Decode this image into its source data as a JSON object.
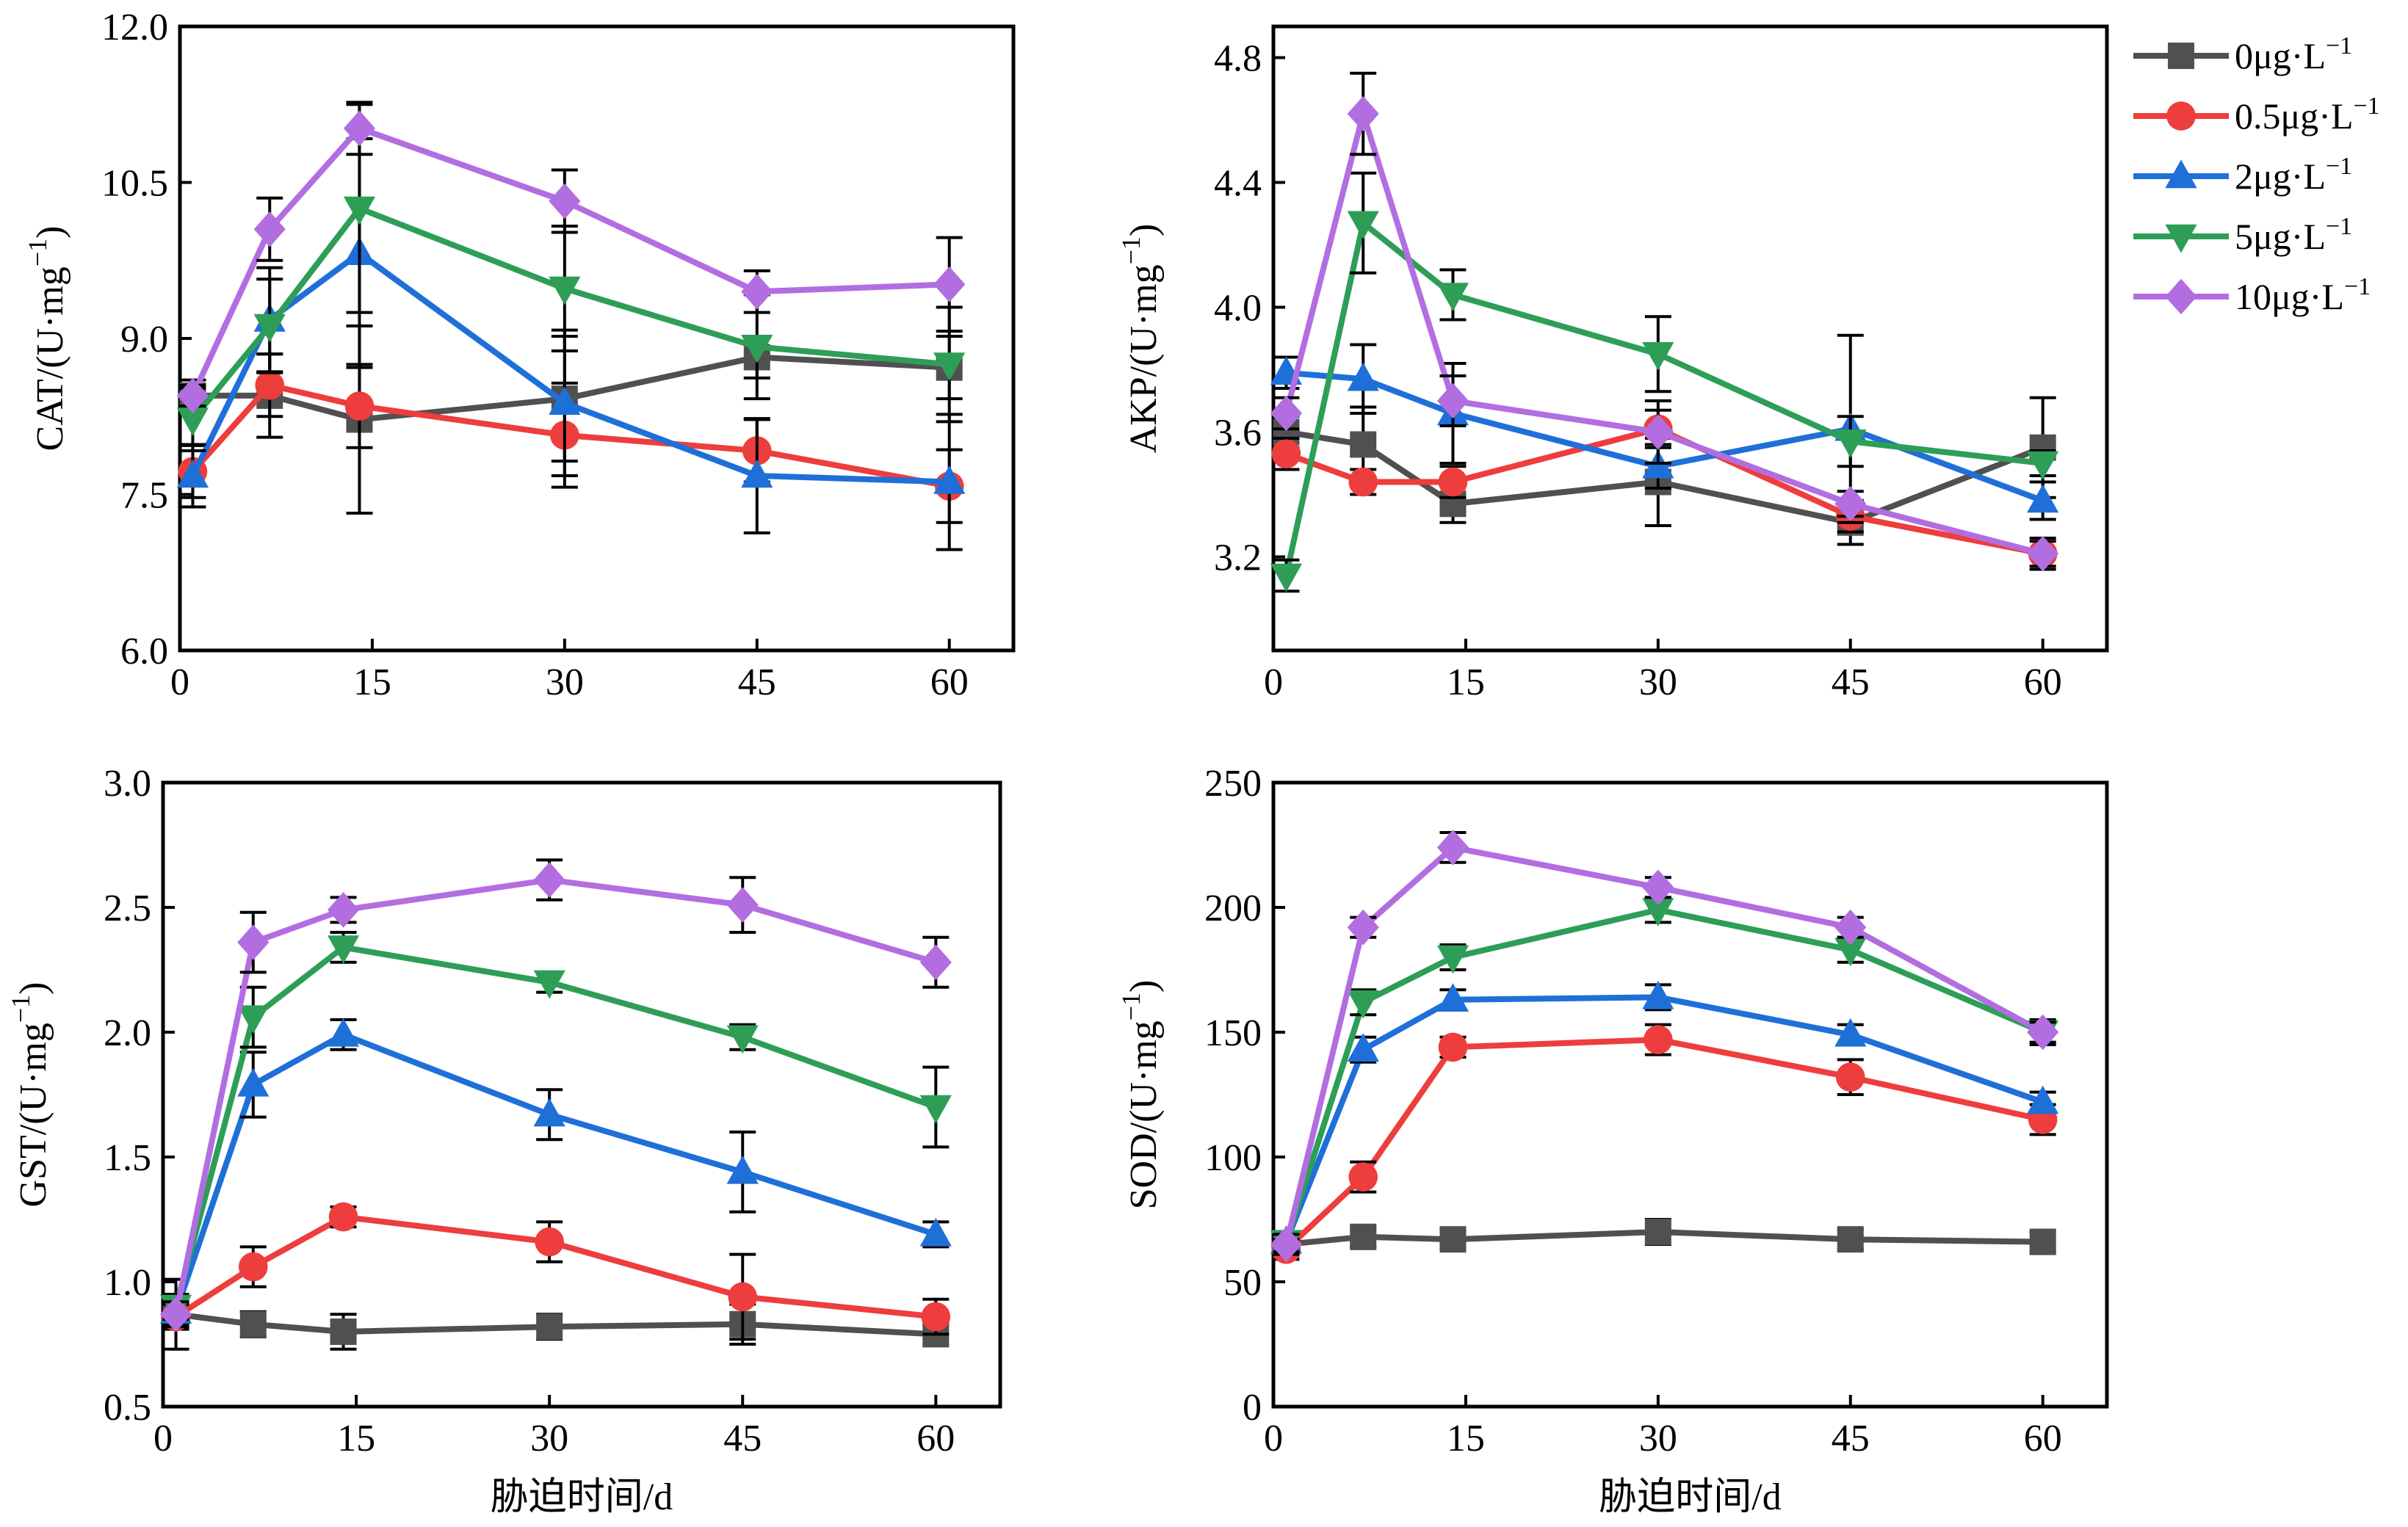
{
  "figure": {
    "legend": [
      {
        "label": "0μg·L",
        "sup": "−1",
        "color": "#505050",
        "marker": "square"
      },
      {
        "label": "0.5μg·L",
        "sup": "−1",
        "color": "#ee3d3d",
        "marker": "circle"
      },
      {
        "label": "2μg·L",
        "sup": "−1",
        "color": "#1f6fd8",
        "marker": "triangle-up"
      },
      {
        "label": "5μg·L",
        "sup": "−1",
        "color": "#2e9e57",
        "marker": "triangle-down"
      },
      {
        "label": "10μg·L",
        "sup": "−1",
        "color": "#b26ee0",
        "marker": "diamond"
      }
    ]
  },
  "chart_data": [
    {
      "type": "line",
      "ylabel": "CAT/(U·mg",
      "ylabel_sup": "−1",
      "ylabel_close": ")",
      "xlabel": "",
      "xlim": [
        0,
        65
      ],
      "ylim": [
        6.0,
        12.0
      ],
      "xticks": [
        0,
        15,
        30,
        45,
        60
      ],
      "xtick_labels": [
        "0",
        "15",
        "30",
        "45",
        "60"
      ],
      "yticks": [
        6.0,
        7.5,
        9.0,
        10.5,
        12.0
      ],
      "ytick_labels": [
        "6.0",
        "7.5",
        "9.0",
        "10.5",
        "12.0"
      ],
      "x": [
        1,
        7,
        14,
        30,
        45,
        60
      ],
      "series": [
        {
          "name": "0μg·L−1",
          "values": [
            8.45,
            8.45,
            8.22,
            8.42,
            8.82,
            8.72
          ],
          "err": [
            0.15,
            0.4,
            0.9,
            0.6,
            0.2,
            0.3
          ]
        },
        {
          "name": "0.5μg·L−1",
          "values": [
            7.72,
            8.55,
            8.35,
            8.07,
            7.92,
            7.58
          ],
          "err": [
            0.25,
            0.3,
            0.4,
            0.5,
            0.3,
            0.35
          ]
        },
        {
          "name": "2μg·L−1",
          "values": [
            7.68,
            9.18,
            9.82,
            8.38,
            7.68,
            7.62
          ],
          "err": [
            0.3,
            0.5,
            1.1,
            0.7,
            0.55,
            0.65
          ]
        },
        {
          "name": "5μg·L−1",
          "values": [
            8.22,
            9.12,
            10.25,
            9.48,
            8.92,
            8.75
          ],
          "err": [
            0.3,
            0.45,
            1.0,
            0.6,
            0.5,
            0.55
          ]
        },
        {
          "name": "10μg·L−1",
          "values": [
            8.45,
            10.05,
            11.02,
            10.32,
            9.45,
            9.52
          ],
          "err": [
            0.1,
            0.3,
            0.25,
            0.3,
            0.2,
            0.45
          ]
        }
      ]
    },
    {
      "type": "line",
      "ylabel": "AKP/(U·mg",
      "ylabel_sup": "−1",
      "ylabel_close": ")",
      "xlabel": "",
      "xlim": [
        0,
        65
      ],
      "ylim": [
        2.9,
        4.9
      ],
      "xticks": [
        0,
        15,
        30,
        45,
        60
      ],
      "xtick_labels": [
        "0",
        "15",
        "30",
        "45",
        "60"
      ],
      "yticks": [
        3.2,
        3.6,
        4.0,
        4.4,
        4.8
      ],
      "ytick_labels": [
        "3.2",
        "3.6",
        "4.0",
        "4.4",
        "4.8"
      ],
      "x": [
        1,
        7,
        14,
        30,
        45,
        60
      ],
      "series": [
        {
          "name": "0μg·L−1",
          "values": [
            3.6,
            3.56,
            3.37,
            3.44,
            3.31,
            3.55
          ],
          "err": [
            0.05,
            0.12,
            0.06,
            0.14,
            0.07,
            0.16
          ]
        },
        {
          "name": "0.5μg·L−1",
          "values": [
            3.53,
            3.44,
            3.44,
            3.61,
            3.33,
            3.21
          ],
          "err": [
            0.05,
            0.04,
            0.05,
            0.06,
            0.05,
            0.05
          ]
        },
        {
          "name": "2μg·L−1",
          "values": [
            3.79,
            3.77,
            3.66,
            3.49,
            3.61,
            3.38
          ],
          "err": [
            0.05,
            0.11,
            0.16,
            0.07,
            0.3,
            0.06
          ]
        },
        {
          "name": "5μg·L−1",
          "values": [
            3.14,
            4.27,
            4.04,
            3.85,
            3.57,
            3.5
          ],
          "err": [
            0.05,
            0.16,
            0.08,
            0.12,
            0.08,
            0.04
          ]
        },
        {
          "name": "10μg·L−1",
          "values": [
            3.66,
            4.62,
            3.7,
            3.6,
            3.37,
            3.21
          ],
          "err": [
            0.05,
            0.13,
            0.08,
            0.1,
            0.04,
            0.04
          ]
        }
      ]
    },
    {
      "type": "line",
      "ylabel": "GST/(U·mg",
      "ylabel_sup": "−1",
      "ylabel_close": ")",
      "xlabel": "胁迫时间/d",
      "xlim": [
        0,
        65
      ],
      "ylim": [
        0.5,
        3.0
      ],
      "xticks": [
        0,
        15,
        30,
        45,
        60
      ],
      "xtick_labels": [
        "0",
        "15",
        "30",
        "45",
        "60"
      ],
      "yticks": [
        0.5,
        1.0,
        1.5,
        2.0,
        2.5,
        3.0
      ],
      "ytick_labels": [
        "0.5",
        "1.0",
        "1.5",
        "2.0",
        "2.5",
        "3.0"
      ],
      "x": [
        1,
        7,
        14,
        30,
        45,
        60
      ],
      "series": [
        {
          "name": "0μg·L−1",
          "values": [
            0.87,
            0.83,
            0.8,
            0.82,
            0.83,
            0.79
          ],
          "err": [
            0.14,
            0.05,
            0.07,
            0.05,
            0.08,
            0.04
          ]
        },
        {
          "name": "0.5μg·L−1",
          "values": [
            0.86,
            1.06,
            1.26,
            1.16,
            0.94,
            0.86
          ],
          "err": [
            0.05,
            0.08,
            0.04,
            0.08,
            0.17,
            0.07
          ]
        },
        {
          "name": "2μg·L−1",
          "values": [
            0.88,
            1.79,
            1.99,
            1.67,
            1.44,
            1.19
          ],
          "err": [
            0.05,
            0.13,
            0.06,
            0.1,
            0.16,
            0.05
          ]
        },
        {
          "name": "5μg·L−1",
          "values": [
            0.9,
            2.06,
            2.34,
            2.2,
            1.98,
            1.7
          ],
          "err": [
            0.05,
            0.12,
            0.06,
            0.04,
            0.05,
            0.16
          ]
        },
        {
          "name": "10μg·L−1",
          "values": [
            0.87,
            2.36,
            2.49,
            2.61,
            2.51,
            2.28
          ],
          "err": [
            0.05,
            0.12,
            0.05,
            0.08,
            0.11,
            0.1
          ]
        }
      ]
    },
    {
      "type": "line",
      "ylabel": "SOD/(U·mg",
      "ylabel_sup": "−1",
      "ylabel_close": ")",
      "xlabel": "胁迫时间/d",
      "xlim": [
        0,
        65
      ],
      "ylim": [
        0,
        250
      ],
      "xticks": [
        0,
        15,
        30,
        45,
        60
      ],
      "xtick_labels": [
        "0",
        "15",
        "30",
        "45",
        "60"
      ],
      "yticks": [
        0,
        50,
        100,
        150,
        200,
        250
      ],
      "ytick_labels": [
        "0",
        "50",
        "100",
        "150",
        "200",
        "250"
      ],
      "x": [
        1,
        7,
        14,
        30,
        45,
        60
      ],
      "series": [
        {
          "name": "0μg·L−1",
          "values": [
            65,
            68,
            67,
            70,
            67,
            66
          ],
          "err": [
            4,
            4,
            4,
            5,
            4,
            4
          ]
        },
        {
          "name": "0.5μg·L−1",
          "values": [
            63,
            92,
            144,
            147,
            132,
            115
          ],
          "err": [
            4,
            6,
            4,
            6,
            7,
            6
          ]
        },
        {
          "name": "2μg·L−1",
          "values": [
            66,
            143,
            163,
            164,
            149,
            122
          ],
          "err": [
            4,
            5,
            4,
            5,
            4,
            4
          ]
        },
        {
          "name": "5μg·L−1",
          "values": [
            66,
            162,
            180,
            199,
            183,
            150
          ],
          "err": [
            4,
            5,
            5,
            5,
            5,
            5
          ]
        },
        {
          "name": "10μg·L−1",
          "values": [
            65,
            192,
            224,
            208,
            192,
            150
          ],
          "err": [
            4,
            4,
            6,
            4,
            4,
            4
          ]
        }
      ]
    }
  ]
}
